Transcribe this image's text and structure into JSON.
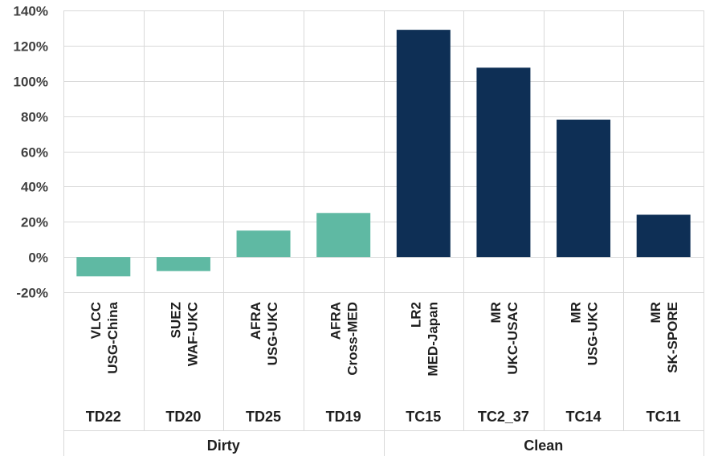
{
  "chart_data": {
    "type": "bar",
    "title": "",
    "xlabel": "",
    "ylabel": "",
    "ylim": [
      -20,
      140
    ],
    "yticks": [
      -20,
      0,
      20,
      40,
      60,
      80,
      100,
      120,
      140
    ],
    "ytick_suffix": "%",
    "grid": true,
    "categories": [
      {
        "lines": [
          "VLCC",
          "USG-China"
        ],
        "code": "TD22",
        "group": "Dirty",
        "value": -11
      },
      {
        "lines": [
          "SUEZ",
          "WAF-UKC"
        ],
        "code": "TD20",
        "group": "Dirty",
        "value": -8
      },
      {
        "lines": [
          "AFRA",
          "USG-UKC"
        ],
        "code": "TD25",
        "group": "Dirty",
        "value": 15
      },
      {
        "lines": [
          "AFRA",
          "Cross-MED"
        ],
        "code": "TD19",
        "group": "Dirty",
        "value": 25
      },
      {
        "lines": [
          "LR2",
          "MED-Japan"
        ],
        "code": "TC15",
        "group": "Clean",
        "value": 129
      },
      {
        "lines": [
          "MR",
          "UKC-USAC"
        ],
        "code": "TC2_37",
        "group": "Clean",
        "value": 107.5
      },
      {
        "lines": [
          "MR",
          "USG-UKC"
        ],
        "code": "TC14",
        "group": "Clean",
        "value": 78
      },
      {
        "lines": [
          "MR",
          "SK-SPORE"
        ],
        "code": "TC11",
        "group": "Clean",
        "value": 24
      }
    ],
    "groups": [
      "Dirty",
      "Clean"
    ],
    "colors": {
      "Dirty": "#5fb9a3",
      "Clean": "#0e2f55"
    }
  }
}
